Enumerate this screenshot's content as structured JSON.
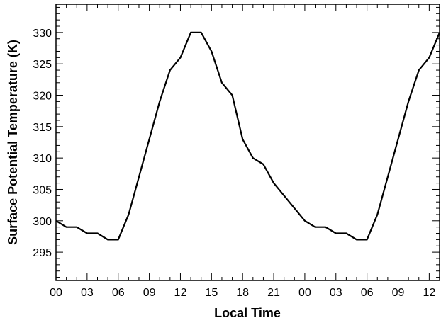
{
  "chart_data": {
    "type": "line",
    "title": "",
    "xlabel": "Local Time",
    "ylabel": "Surface Potential Temperature (K)",
    "x_tick_labels": [
      "00",
      "03",
      "06",
      "09",
      "12",
      "15",
      "18",
      "21",
      "00",
      "03",
      "06",
      "09",
      "12"
    ],
    "y_ticks": [
      295,
      300,
      305,
      310,
      315,
      320,
      325,
      330
    ],
    "x_range_hours": [
      0,
      37
    ],
    "ylim": [
      290.5,
      334.5
    ],
    "grid": false,
    "legend": "none",
    "line_color": "#000000",
    "series": [
      {
        "x": [
          0,
          1,
          2,
          3,
          4,
          5,
          6,
          7,
          8,
          9,
          10,
          11,
          12,
          13,
          14,
          15,
          16,
          17,
          18,
          19,
          20,
          21,
          22,
          23,
          24,
          25,
          26,
          27,
          28,
          29,
          30,
          31,
          32,
          33,
          34,
          35,
          36,
          37
        ],
        "values": [
          300,
          299,
          299,
          298,
          298,
          297,
          297,
          301,
          307,
          313,
          319,
          324,
          326,
          330,
          330,
          327,
          322,
          320,
          313,
          310,
          309,
          306,
          304,
          302,
          300,
          299,
          299,
          298,
          298,
          297,
          297,
          301,
          307,
          313,
          319,
          324,
          326,
          330
        ]
      }
    ]
  }
}
